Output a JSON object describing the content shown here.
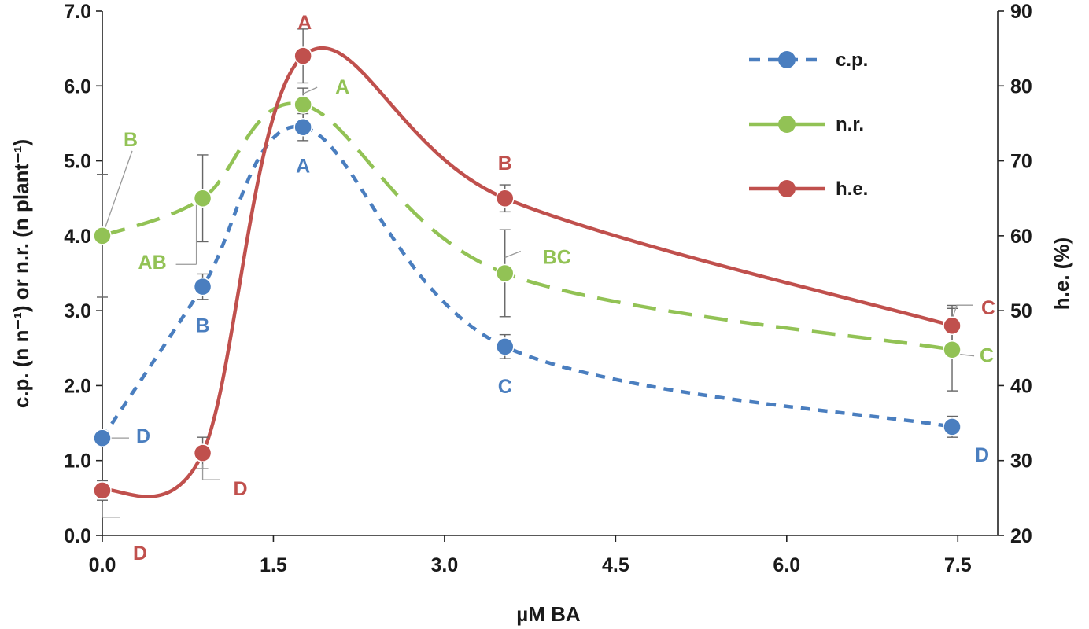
{
  "chart_data": {
    "type": "line",
    "title": "",
    "xlabel": "µM BA",
    "ylabel_left": "c.p. (n n⁻¹) or n.r. (n plant⁻¹)",
    "ylabel_right": "h.e. (%)",
    "xlim": [
      0,
      7.85
    ],
    "ylim_left": [
      0,
      7
    ],
    "ylim_right": [
      20,
      90
    ],
    "x_ticks": [
      "0.0",
      "1.5",
      "3.0",
      "4.5",
      "6.0",
      "7.5"
    ],
    "y_left_ticks": [
      "0.0",
      "1.0",
      "2.0",
      "3.0",
      "4.0",
      "5.0",
      "6.0",
      "7.0"
    ],
    "y_right_ticks": [
      "20",
      "30",
      "40",
      "50",
      "60",
      "70",
      "80",
      "90"
    ],
    "x": [
      0,
      0.88,
      1.76,
      3.53,
      7.45
    ],
    "series": [
      {
        "name": "c.p.",
        "axis": "left",
        "color": "#4a7ebf",
        "dash": "short",
        "values": [
          1.3,
          3.32,
          5.45,
          2.52,
          1.45
        ],
        "errors": [
          0.0,
          0.17,
          0.18,
          0.16,
          0.14
        ],
        "letters": [
          "D",
          "B",
          "A",
          "C",
          "D"
        ]
      },
      {
        "name": "n.r.",
        "axis": "left",
        "color": "#92c255",
        "dash": "long",
        "values": [
          4.0,
          4.5,
          5.75,
          3.5,
          2.48
        ],
        "errors": [
          0.82,
          0.58,
          0.22,
          0.58,
          0.55
        ],
        "letters": [
          "B",
          "AB",
          "A",
          "BC",
          "C"
        ]
      },
      {
        "name": "h.e.",
        "axis": "right",
        "color": "#c0504d",
        "dash": "solid",
        "values": [
          26,
          31,
          84,
          65,
          48
        ],
        "errors": [
          1.3,
          2.1,
          3.6,
          1.8,
          2.7
        ],
        "letters": [
          "D",
          "D",
          "A",
          "B",
          "C"
        ]
      }
    ],
    "legend": [
      "c.p.",
      "n.r.",
      "h.e."
    ],
    "legend_position": "top-right"
  }
}
